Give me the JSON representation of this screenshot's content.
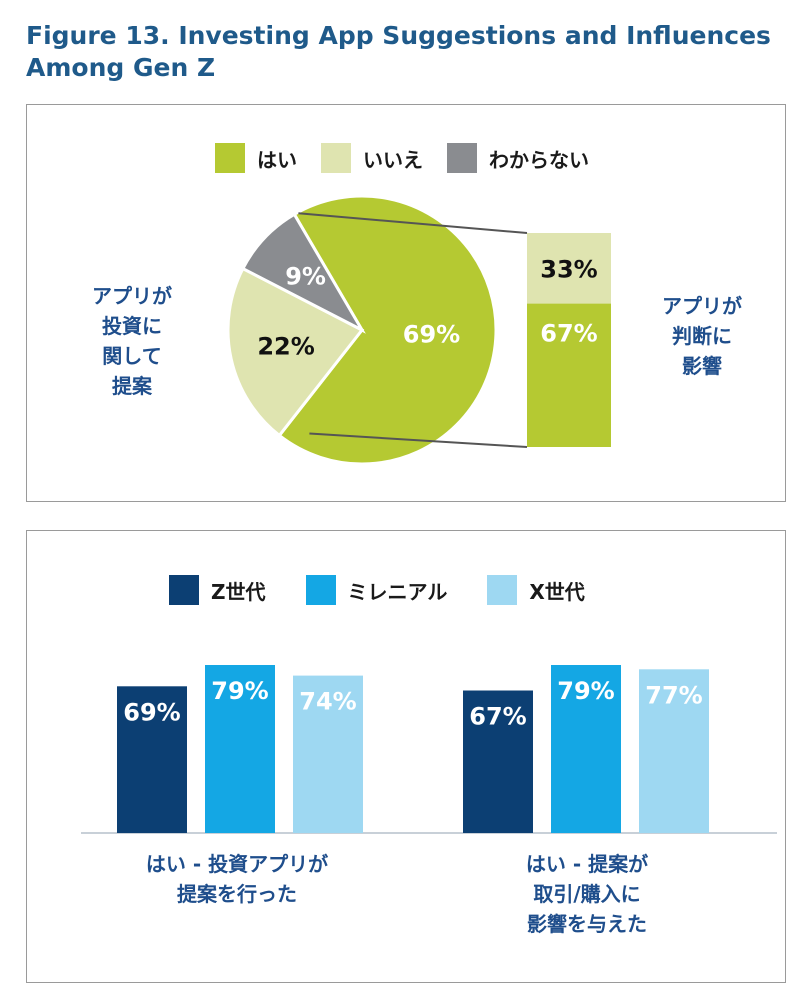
{
  "figure": {
    "title_line1": "Figure 13. Investing App Suggestions and Influences",
    "title_line2": "Among Gen Z"
  },
  "colors": {
    "yes": "#b5c932",
    "no": "#dfe4b0",
    "dont_know": "#8a8c90",
    "gen_z": "#0c3f73",
    "millennial": "#14a7e4",
    "gen_x": "#9ed8f2",
    "title": "#1f5a8a",
    "label": "#1f4e8c"
  },
  "pie_panel": {
    "legend": [
      "はい",
      "いいえ",
      "わからない"
    ],
    "left_label": [
      "アプリが",
      "投資に",
      "関して",
      "提案"
    ],
    "right_label": [
      "アプリが",
      "判断に",
      "影響"
    ]
  },
  "bar_panel": {
    "legend": [
      "Z世代",
      "ミレニアル",
      "X世代"
    ],
    "groups": [
      {
        "label": [
          "はい - 投資アプリが",
          "提案を行った"
        ]
      },
      {
        "label": [
          "はい - 提案が",
          "取引/購入に",
          "影響を与えた"
        ]
      }
    ]
  },
  "chart_data": [
    {
      "type": "pie",
      "categories": [
        "はい",
        "いいえ",
        "わからない"
      ],
      "values": [
        69,
        22,
        9
      ],
      "data_labels": [
        "69%",
        "22%",
        "9%"
      ]
    },
    {
      "type": "bar",
      "stacked": true,
      "categories": [
        "はい"
      ],
      "series": [
        {
          "name": "はい",
          "values": [
            67
          ]
        },
        {
          "name": "いいえ",
          "values": [
            33
          ]
        }
      ],
      "data_labels": [
        "67%",
        "33%"
      ],
      "ylim": [
        0,
        100
      ]
    },
    {
      "type": "bar",
      "categories": [
        "はい - 投資アプリが提案を行った",
        "はい - 提案が取引/購入に影響を与えた"
      ],
      "series": [
        {
          "name": "Z世代",
          "values": [
            69,
            67
          ]
        },
        {
          "name": "ミレニアル",
          "values": [
            79,
            79
          ]
        },
        {
          "name": "X世代",
          "values": [
            74,
            77
          ]
        }
      ],
      "data_labels": [
        [
          "69%",
          "67%"
        ],
        [
          "79%",
          "79%"
        ],
        [
          "74%",
          "77%"
        ]
      ],
      "ylim": [
        0,
        100
      ]
    }
  ]
}
